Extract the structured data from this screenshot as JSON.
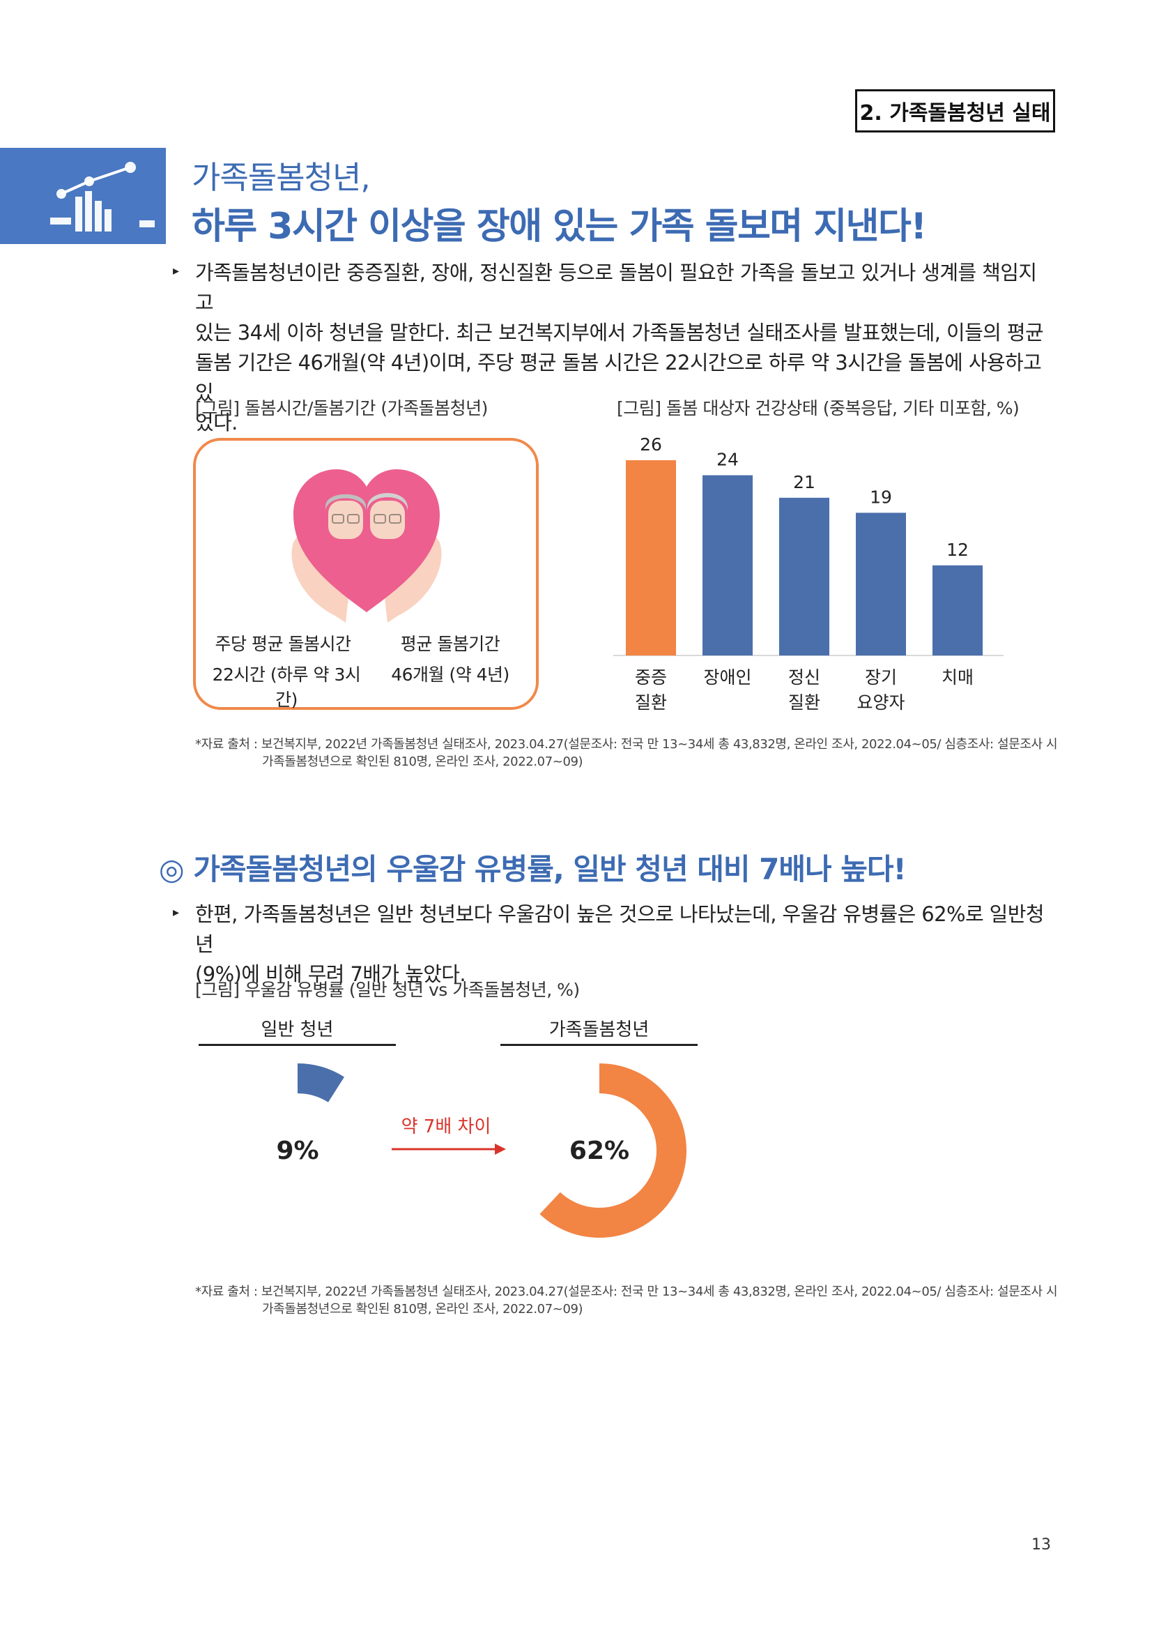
{
  "header": {
    "section_tag": "2. 가족돌봄청년 실태"
  },
  "title": {
    "line1": "가족돌봄청년,",
    "line2": "하루 3시간 이상을 장애 있는 가족 돌보며 지낸다!"
  },
  "intro": {
    "lines": [
      "가족돌봄청년이란 중증질환, 장애, 정신질환 등으로 돌봄이 필요한 가족을 돌보고 있거나 생계를 책임지고",
      "있는 34세 이하 청년을 말한다. 최근 보건복지부에서 가족돌봄청년 실태조사를 발표했는데, 이들의 평균",
      "돌봄 기간은 46개월(약 4년)이며, 주당 평균 돌봄 시간은 22시간으로 하루 약 3시간을 돌봄에 사용하고 있",
      "었다."
    ]
  },
  "figure1": {
    "caption": "[그림] 돌봄시간/돌봄기간 (가족돌봄청년)",
    "left_label": "주당 평균 돌봄시간",
    "left_value": "22시간 (하루 약 3시간)",
    "right_label": "평균 돌봄기간",
    "right_value": "46개월 (약 4년)"
  },
  "figure2": {
    "caption": "[그림] 돌봄 대상자 건강상태 (중복응답, 기타 미포함, %)"
  },
  "source1": {
    "line1": "*자료 출처 : 보건복지부, 2022년 가족돌봄청년 실태조사, 2023.04.27(설문조사: 전국 만 13~34세 총 43,832명, 온라인 조사, 2022.04~05/ 심층조사: 설문조사 시",
    "line2": "가족돌봄청년으로 확인된 810명, 온라인 조사, 2022.07~09)"
  },
  "section2": {
    "heading": "◎ 가족돌봄청년의 우울감 유병률, 일반 청년 대비 7배나 높다!",
    "lines": [
      "한편, 가족돌봄청년은 일반 청년보다 우울감이 높은 것으로 나타났는데, 우울감 유병률은 62%로 일반청년",
      "(9%)에 비해 무려 7배가 높았다."
    ]
  },
  "figure3": {
    "caption": "[그림] 우울감 유병률 (일반 청년 vs 가족돌봄청년, %)",
    "left_title": "일반 청년",
    "right_title": "가족돌봄청년",
    "left_value_label": "9%",
    "right_value_label": "62%",
    "arrow_label": "약 7배 차이"
  },
  "source2": {
    "line1": "*자료 출처 : 보건복지부, 2022년 가족돌봄청년 실태조사, 2023.04.27(설문조사: 전국 만 13~34세 총 43,832명, 온라인 조사, 2022.04~05/ 심층조사: 설문조사 시",
    "line2": "가족돌봄청년으로 확인된 810명, 온라인 조사, 2022.07~09)"
  },
  "page_number": "13",
  "colors": {
    "blue": "#4a6fab",
    "orange": "#f28444",
    "title_blue": "#3d6bb3"
  },
  "chart_data": [
    {
      "type": "bar",
      "title": "",
      "categories": [
        [
          "중증",
          "질환"
        ],
        [
          "장애인"
        ],
        [
          "정신",
          "질환"
        ],
        [
          "장기",
          "요양자"
        ],
        [
          "치매"
        ]
      ],
      "values": [
        26,
        24,
        21,
        19,
        12
      ],
      "highlight_index": 0,
      "ylim": [
        0,
        26
      ],
      "grid": false,
      "legend": "none"
    },
    {
      "type": "pie",
      "title": "",
      "series": [
        {
          "name": "일반 청년",
          "values": [
            9
          ]
        },
        {
          "name": "가족돌봄청년",
          "values": [
            62
          ]
        }
      ],
      "unit": "%"
    }
  ]
}
